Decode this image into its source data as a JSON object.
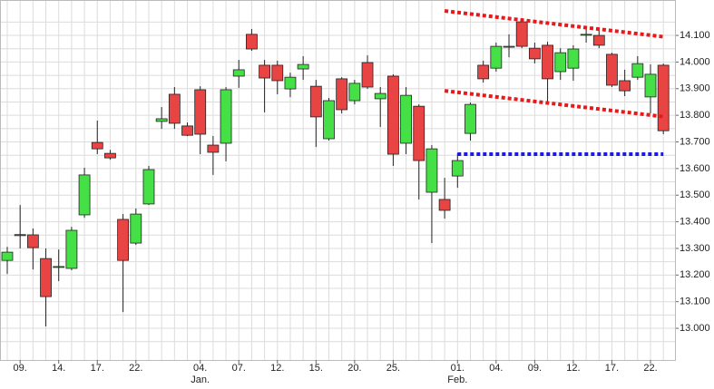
{
  "chart_data": {
    "type": "candlestick",
    "categories": [
      null,
      "09.",
      null,
      null,
      "14.",
      null,
      null,
      "17.",
      null,
      null,
      "22.",
      null,
      null,
      null,
      null,
      "04.",
      null,
      null,
      "07.",
      null,
      null,
      "12.",
      null,
      null,
      "15.",
      null,
      null,
      "20.",
      null,
      null,
      "25.",
      null,
      null,
      null,
      null,
      "01.",
      null,
      null,
      "04.",
      null,
      null,
      "09.",
      null,
      null,
      "12.",
      null,
      null,
      "17.",
      null,
      null,
      "22.",
      null
    ],
    "subcategories": [
      null,
      null,
      null,
      null,
      null,
      null,
      null,
      null,
      null,
      null,
      null,
      null,
      null,
      null,
      null,
      "Jan.",
      null,
      null,
      null,
      null,
      null,
      null,
      null,
      null,
      null,
      null,
      null,
      null,
      null,
      null,
      null,
      null,
      null,
      null,
      null,
      "Feb.",
      null,
      null,
      null,
      null,
      null,
      null,
      null,
      null,
      null,
      null,
      null,
      null,
      null,
      null,
      null,
      null
    ],
    "open": [
      13255,
      13352,
      13351,
      13262,
      13230,
      13225,
      13426,
      13698,
      13657,
      13409,
      13320,
      13467,
      13777,
      13879,
      13760,
      13896,
      13688,
      13695,
      13947,
      14104,
      13988,
      13988,
      13899,
      13974,
      13909,
      13712,
      13937,
      13855,
      13998,
      13862,
      13947,
      13695,
      13834,
      13511,
      13484,
      13572,
      13732,
      13988,
      13977,
      14056,
      14151,
      14052,
      14063,
      13964,
      13977,
      14102,
      14100,
      14029,
      13930,
      13943,
      13869,
      13988
    ],
    "high": [
      13306,
      13463,
      13375,
      13300,
      13296,
      13381,
      13603,
      13780,
      13670,
      13429,
      13450,
      13610,
      13831,
      13906,
      13773,
      13909,
      13722,
      13906,
      14008,
      14124,
      14008,
      14005,
      13960,
      14022,
      13933,
      13865,
      13943,
      13933,
      14025,
      13906,
      13954,
      13906,
      13841,
      13688,
      13565,
      13657,
      13848,
      14005,
      14073,
      14104,
      14165,
      14073,
      14076,
      14052,
      14063,
      14131,
      14121,
      14035,
      13971,
      14022,
      13991,
      13994
    ],
    "low": [
      13204,
      13300,
      13221,
      13007,
      13177,
      13218,
      13415,
      13654,
      13633,
      13061,
      13313,
      13463,
      13749,
      13749,
      13722,
      13654,
      13576,
      13627,
      13903,
      14042,
      13811,
      13879,
      13868,
      13933,
      13681,
      13705,
      13807,
      13841,
      13899,
      13756,
      13610,
      13654,
      13484,
      13320,
      13412,
      13528,
      13705,
      13923,
      13964,
      14018,
      14052,
      13995,
      13845,
      13933,
      13930,
      14073,
      14052,
      13906,
      13872,
      13933,
      13807,
      13729
    ],
    "close": [
      13286,
      13348,
      13303,
      13119,
      13232,
      13368,
      13576,
      13674,
      13640,
      13255,
      13429,
      13596,
      13787,
      13770,
      13725,
      13729,
      13661,
      13896,
      13971,
      14049,
      13940,
      13930,
      13943,
      13991,
      13794,
      13855,
      13821,
      13920,
      13906,
      13882,
      13654,
      13875,
      13630,
      13674,
      13443,
      13630,
      13841,
      13937,
      14059,
      14059,
      14059,
      14012,
      13937,
      14035,
      14049,
      14104,
      14063,
      13913,
      13892,
      13994,
      13954,
      13742
    ],
    "up_color": "#45e045",
    "down_color": "#e84444",
    "ylim": [
      12881,
      14233
    ],
    "yticks": [
      {
        "value": 13000,
        "label": "13.000"
      },
      {
        "value": 13100,
        "label": "13.100"
      },
      {
        "value": 13200,
        "label": "13.200"
      },
      {
        "value": 13300,
        "label": "13.300"
      },
      {
        "value": 13400,
        "label": "13.400"
      },
      {
        "value": 13500,
        "label": "13.500"
      },
      {
        "value": 13600,
        "label": "13.600"
      },
      {
        "value": 13700,
        "label": "13.700"
      },
      {
        "value": 13800,
        "label": "13.800"
      },
      {
        "value": 13900,
        "label": "13.900"
      },
      {
        "value": 14000,
        "label": "14.000"
      },
      {
        "value": 14100,
        "label": "14.100"
      }
    ],
    "minor_yticks": [
      12950,
      13050,
      13150,
      13250,
      13350,
      13450,
      13550,
      13650,
      13750,
      13850,
      13950,
      14050,
      14150
    ],
    "grid": true,
    "lines": [
      {
        "color": "#e8191a",
        "start": 34,
        "end": 51,
        "values": [
          14192,
          14095
        ]
      },
      {
        "color": "#e8191a",
        "start": 34,
        "end": 51,
        "values": [
          13892,
          13795
        ]
      },
      {
        "color": "#1a1ae8",
        "start": 35,
        "end": 51,
        "values": [
          13654,
          13654
        ]
      }
    ]
  }
}
